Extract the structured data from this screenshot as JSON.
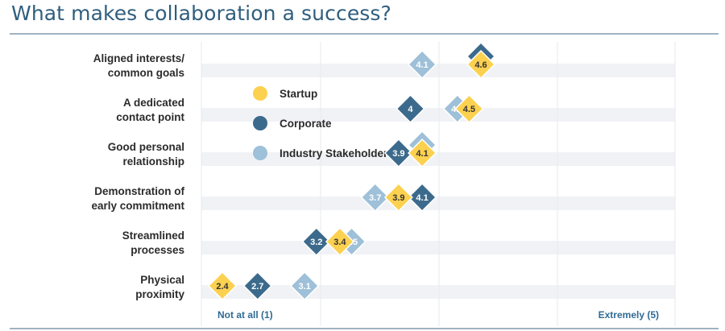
{
  "page": {
    "title": "What makes collaboration a success?"
  },
  "chart_data": {
    "type": "scatter",
    "title": "What makes collaboration a success?",
    "xlim": [
      1,
      5
    ],
    "x_start_label": "Not at all (1)",
    "x_end_label": "Extremely (5)",
    "categories": [
      [
        "Aligned interests/",
        "common goals"
      ],
      [
        "A dedicated",
        "contact point"
      ],
      [
        "Good personal",
        "relationship"
      ],
      [
        "Demonstration of",
        "early commitment"
      ],
      [
        "Streamlined",
        "processes"
      ],
      [
        "Physical",
        "proximity"
      ]
    ],
    "series": [
      {
        "name": "Startup",
        "color": "#fcd150",
        "text_color": "#333333",
        "values": [
          4.6,
          4.5,
          4.1,
          3.9,
          3.4,
          2.4
        ]
      },
      {
        "name": "Corporate",
        "color": "#3c6a8c",
        "text_color": "#ffffff",
        "values": [
          4.6,
          4.0,
          3.9,
          4.1,
          3.2,
          2.7
        ]
      },
      {
        "name": "Industry Stakeholders",
        "color": "#9ec0d8",
        "text_color": "#ffffff",
        "values": [
          4.1,
          4.4,
          4.1,
          3.7,
          3.5,
          3.1
        ]
      }
    ],
    "label_order": [
      "Industry Stakeholders",
      "Corporate",
      "Startup"
    ],
    "grid": true,
    "legend_position": "upper-left inside plot"
  }
}
